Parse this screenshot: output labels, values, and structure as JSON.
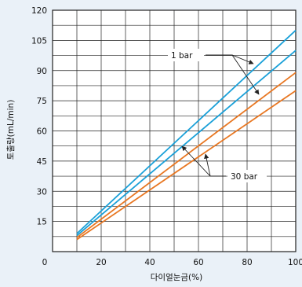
{
  "chart_data": {
    "type": "line",
    "title": "",
    "xlabel": "다이얼눈금(%)",
    "ylabel": "토출량(mL/min)",
    "xlim": [
      0,
      100
    ],
    "ylim": [
      0,
      120
    ],
    "x_ticks": [
      0,
      20,
      40,
      60,
      80,
      100
    ],
    "y_ticks": [
      15,
      30,
      45,
      60,
      75,
      90,
      105,
      120
    ],
    "grid": true,
    "series": [
      {
        "color": "#1aa0d8",
        "x": [
          10,
          100
        ],
        "y": [
          9,
          110
        ]
      },
      {
        "color": "#1aa0d8",
        "x": [
          10,
          100
        ],
        "y": [
          8,
          100
        ]
      },
      {
        "color": "#e87722",
        "x": [
          10,
          100
        ],
        "y": [
          7,
          89
        ]
      },
      {
        "color": "#e87722",
        "x": [
          10,
          100
        ],
        "y": [
          6,
          80
        ]
      }
    ],
    "annotations": [
      {
        "label": "1 bar",
        "series_index": [
          0,
          1
        ]
      },
      {
        "label": "30 bar",
        "series_index": [
          2,
          3
        ]
      }
    ]
  },
  "colors": {
    "background": "#eaf1f8",
    "plot_background": "#ffffff",
    "grid": "#222222",
    "blue": "#1aa0d8",
    "orange": "#e87722"
  }
}
